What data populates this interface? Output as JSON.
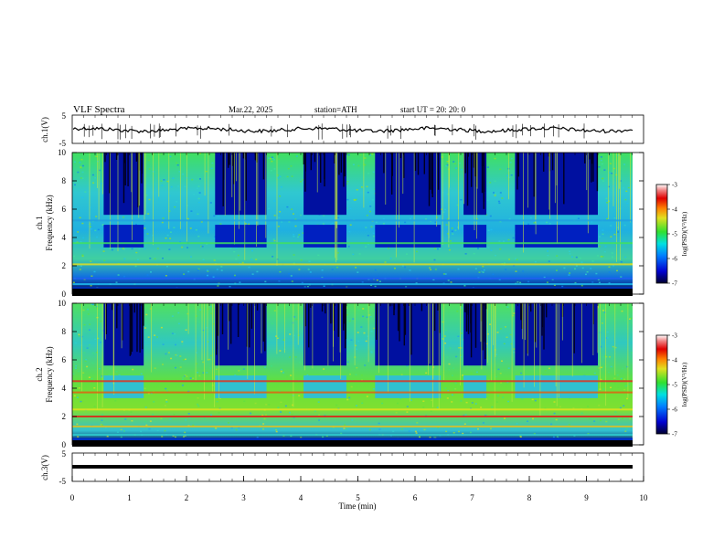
{
  "header": {
    "title": "VLF  Spectra",
    "date": "Mar.22, 2025",
    "station": "station=ATH",
    "start": "start  UT  =   20: 20: 0"
  },
  "chart_data": [
    {
      "type": "line",
      "ylabel": "ch.1(V)",
      "ylim": [
        -5,
        5
      ],
      "yticks": [
        "5",
        "-5"
      ],
      "xlim": [
        0,
        10
      ],
      "description_values": "waveform near 0 V"
    },
    {
      "type": "heatmap",
      "ylabel_line1": "ch.1",
      "ylabel_line2": "Frequency (kHz)",
      "ylim": [
        0,
        10
      ],
      "yticks": [
        "0",
        "2",
        "4",
        "6",
        "8",
        "10"
      ],
      "xlim": [
        0,
        10
      ],
      "colorbar": {
        "label": "log(PSD)(V²/Hz)",
        "ticks": [
          "-3",
          "-4",
          "-5",
          "-6",
          "-7"
        ],
        "range": [
          -7,
          -3
        ]
      },
      "quiet_intervals_min": [
        [
          0.55,
          1.25
        ],
        [
          2.5,
          3.4
        ],
        [
          4.05,
          4.8
        ],
        [
          5.3,
          6.45
        ],
        [
          6.85,
          7.25
        ],
        [
          7.75,
          9.2
        ]
      ]
    },
    {
      "type": "heatmap",
      "ylabel_line1": "ch.2",
      "ylabel_line2": "Frequency (kHz)",
      "ylim": [
        0,
        10
      ],
      "yticks": [
        "0",
        "2",
        "4",
        "6",
        "8",
        "10"
      ],
      "xlim": [
        0,
        10
      ],
      "colorbar": {
        "label": "log(PSD)(V²/Hz)",
        "ticks": [
          "-3",
          "-4",
          "-5",
          "-6",
          "-7"
        ],
        "range": [
          -7,
          -3
        ]
      },
      "quiet_intervals_min": [
        [
          0.55,
          1.25
        ],
        [
          2.5,
          3.4
        ],
        [
          4.05,
          4.8
        ],
        [
          5.3,
          6.45
        ],
        [
          6.85,
          7.25
        ],
        [
          7.75,
          9.2
        ]
      ]
    },
    {
      "type": "line",
      "ylabel": "ch.3(V)",
      "ylim": [
        -5,
        5
      ],
      "yticks": [
        "5",
        "-5"
      ],
      "xlim": [
        0,
        10
      ],
      "xlabel": "Time  (min)",
      "xticks": [
        "0",
        "1",
        "2",
        "3",
        "4",
        "5",
        "6",
        "7",
        "8",
        "9",
        "10"
      ]
    }
  ]
}
